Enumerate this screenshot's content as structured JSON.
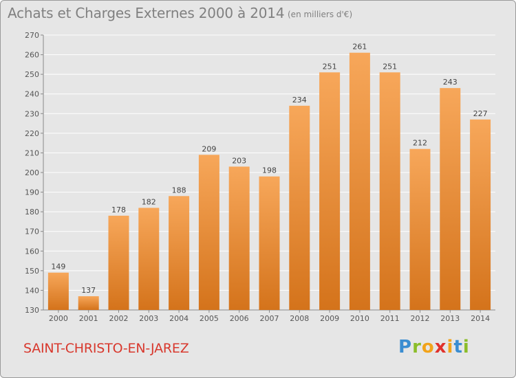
{
  "header": {
    "title": "Achats et Charges Externes 2000 à 2014",
    "subtitle": "(en milliers d'€)"
  },
  "footer": {
    "commune": "SAINT-CHRISTO-EN-JAREZ",
    "logo_text": "Proxiti"
  },
  "colors": {
    "bar_top": "#f7a75a",
    "bar_bottom": "#d4731b",
    "grid": "#ffffff",
    "commune": "#d8382d"
  },
  "chart_data": {
    "type": "bar",
    "title": "Achats et Charges Externes 2000 à 2014",
    "xlabel": "",
    "ylabel": "en milliers d'€",
    "categories": [
      "2000",
      "2001",
      "2002",
      "2003",
      "2004",
      "2005",
      "2006",
      "2007",
      "2008",
      "2009",
      "2010",
      "2011",
      "2012",
      "2013",
      "2014"
    ],
    "values": [
      149,
      137,
      178,
      182,
      188,
      209,
      203,
      198,
      234,
      251,
      261,
      251,
      212,
      243,
      227
    ],
    "ylim": [
      130,
      270
    ],
    "yticks": [
      130,
      140,
      150,
      160,
      170,
      180,
      190,
      200,
      210,
      220,
      230,
      240,
      250,
      260,
      270
    ],
    "grid": true,
    "legend": "none"
  }
}
